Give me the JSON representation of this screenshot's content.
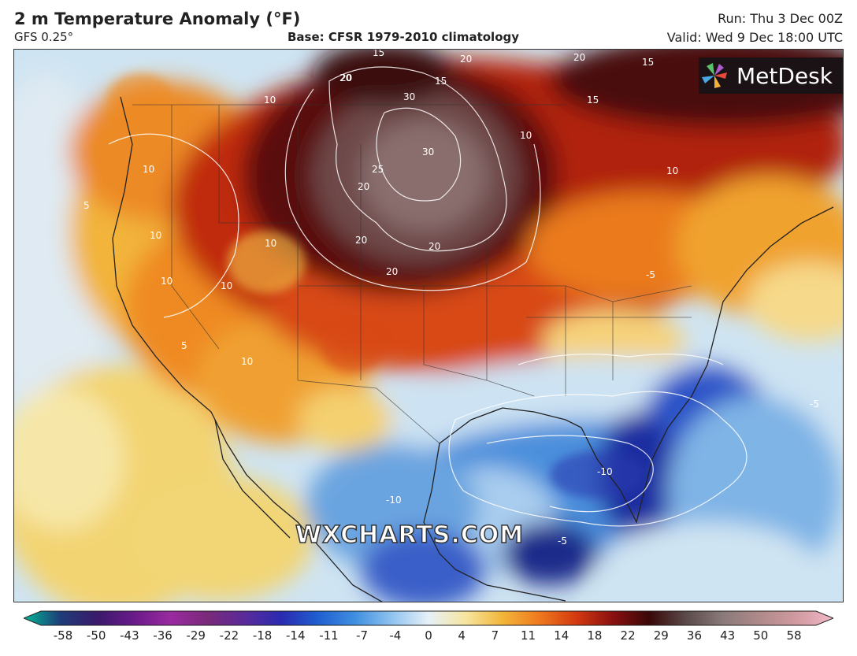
{
  "header": {
    "title": "2 m Temperature Anomaly (°F)",
    "model": "GFS 0.25°",
    "base": "Base: CFSR 1979-2010 climatology",
    "run": "Run: Thu 3 Dec 00Z",
    "valid": "Valid: Wed 9 Dec 18:00 UTC"
  },
  "logo": {
    "text": "MetDesk",
    "icon": "metdesk-pinwheel-icon"
  },
  "watermark": "WXCHARTS.COM",
  "map": {
    "contour_labels": [
      "20",
      "15",
      "20",
      "15",
      "20",
      "20",
      "30",
      "15",
      "15",
      "10",
      "10",
      "30",
      "10",
      "25",
      "20",
      "20",
      "10",
      "10",
      "10",
      "20",
      "20",
      "10",
      "5",
      "10",
      "10",
      "-5",
      "5",
      "-5",
      "-10",
      "-10",
      "-5"
    ]
  },
  "colorbar": {
    "ticks": [
      "-58",
      "-50",
      "-43",
      "-36",
      "-29",
      "-22",
      "-18",
      "-14",
      "-11",
      "-7",
      "-4",
      "0",
      "4",
      "7",
      "11",
      "14",
      "18",
      "22",
      "29",
      "36",
      "43",
      "50",
      "58"
    ],
    "colors": [
      "#00b894",
      "#1e3c78",
      "#3a1a6b",
      "#6a1a8a",
      "#9a2aa0",
      "#7a2a7a",
      "#5a2a9a",
      "#2a2ab0",
      "#1f5fd0",
      "#3f8fe0",
      "#8fc3ef",
      "#e6f0f8",
      "#f7e6a0",
      "#f2b63a",
      "#ef7a1e",
      "#d43a10",
      "#8a1010",
      "#3a0808",
      "#5a4a4a",
      "#8a7a7a",
      "#b08a8a",
      "#d09aa0",
      "#f2b8c8"
    ]
  }
}
